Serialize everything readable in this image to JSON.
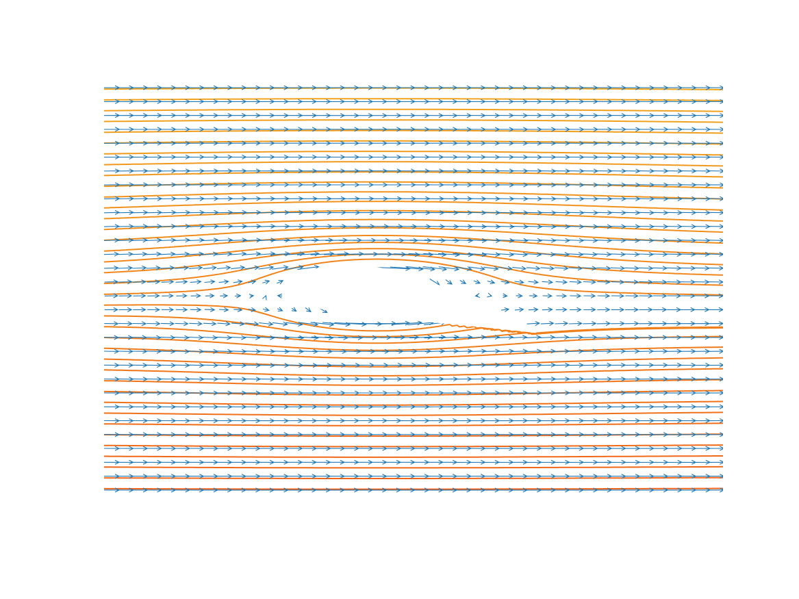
{
  "chart_data": {
    "type": "vector-field",
    "description_kind": "quiver-and-streamlines",
    "title": "",
    "xlabel": "",
    "ylabel": "",
    "xlim": [
      -0.75,
      1.75
    ],
    "ylim": [
      -0.5,
      0.5
    ],
    "axes_visible": false,
    "grid": false,
    "free_stream_direction": "left-to-right",
    "obstacle": {
      "kind": "airfoil",
      "chord": 1.0,
      "leading_edge": [
        0.0,
        0.0
      ],
      "trailing_edge": [
        1.0,
        0.0
      ],
      "max_thickness_fraction": 0.12,
      "camber_fraction": 0.03,
      "angle_of_attack_deg": 6
    },
    "series": [
      {
        "kind": "quiver",
        "color": "#1f77b4"
      },
      {
        "kind": "streamlines",
        "count": 38,
        "color_top": "#f1a51d",
        "color_bottom": "#f06318"
      }
    ]
  }
}
